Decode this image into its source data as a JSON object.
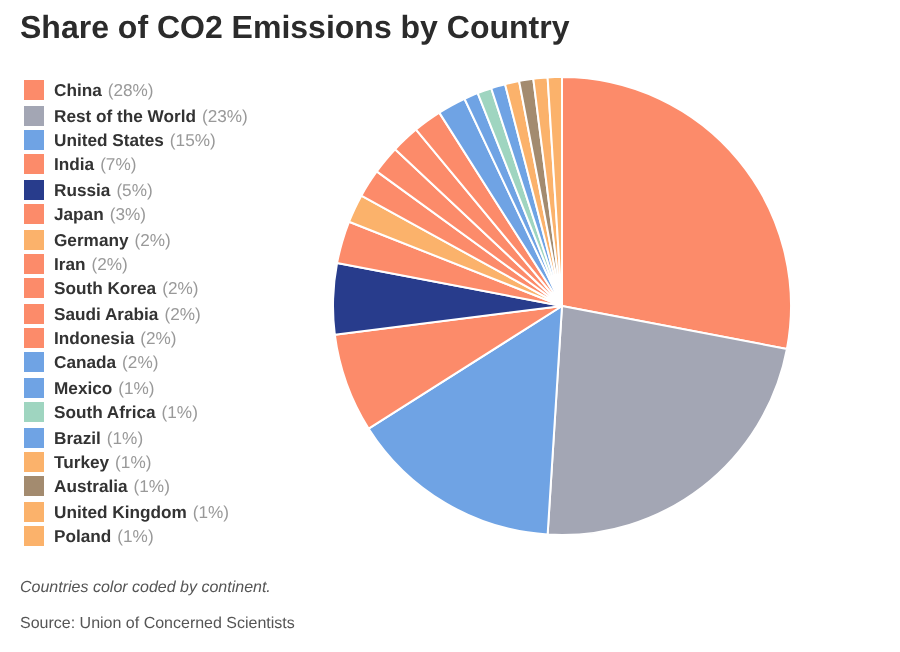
{
  "chart_data": {
    "type": "pie",
    "title": "Share of CO2 Emissions by Country",
    "categories": [
      "China",
      "Rest of the World",
      "United States",
      "India",
      "Russia",
      "Japan",
      "Germany",
      "Iran",
      "South Korea",
      "Saudi Arabia",
      "Indonesia",
      "Canada",
      "Mexico",
      "South Africa",
      "Brazil",
      "Turkey",
      "Australia",
      "United Kingdom",
      "Poland"
    ],
    "values": [
      28,
      23,
      15,
      7,
      5,
      3,
      2,
      2,
      2,
      2,
      2,
      2,
      1,
      1,
      1,
      1,
      1,
      1,
      1
    ],
    "value_labels": [
      "(28%)",
      "(23%)",
      "(15%)",
      "(7%)",
      "(5%)",
      "(3%)",
      "(2%)",
      "(2%)",
      "(2%)",
      "(2%)",
      "(2%)",
      "(2%)",
      "(1%)",
      "(1%)",
      "(1%)",
      "(1%)",
      "(1%)",
      "(1%)",
      "(1%)"
    ],
    "colors": [
      "#fc8b6a",
      "#a3a6b4",
      "#6fa3e4",
      "#fc8b6a",
      "#283c8c",
      "#fc8b6a",
      "#fbb26b",
      "#fc8b6a",
      "#fc8b6a",
      "#fc8b6a",
      "#fc8b6a",
      "#6fa3e4",
      "#6fa3e4",
      "#9fd5c0",
      "#6fa3e4",
      "#fbb26b",
      "#a38b6f",
      "#fbb26b",
      "#fbb26b"
    ],
    "legend": "left",
    "annotations": [
      "Countries color coded by continent.",
      "Source: Union of Concerned Scientists"
    ]
  }
}
